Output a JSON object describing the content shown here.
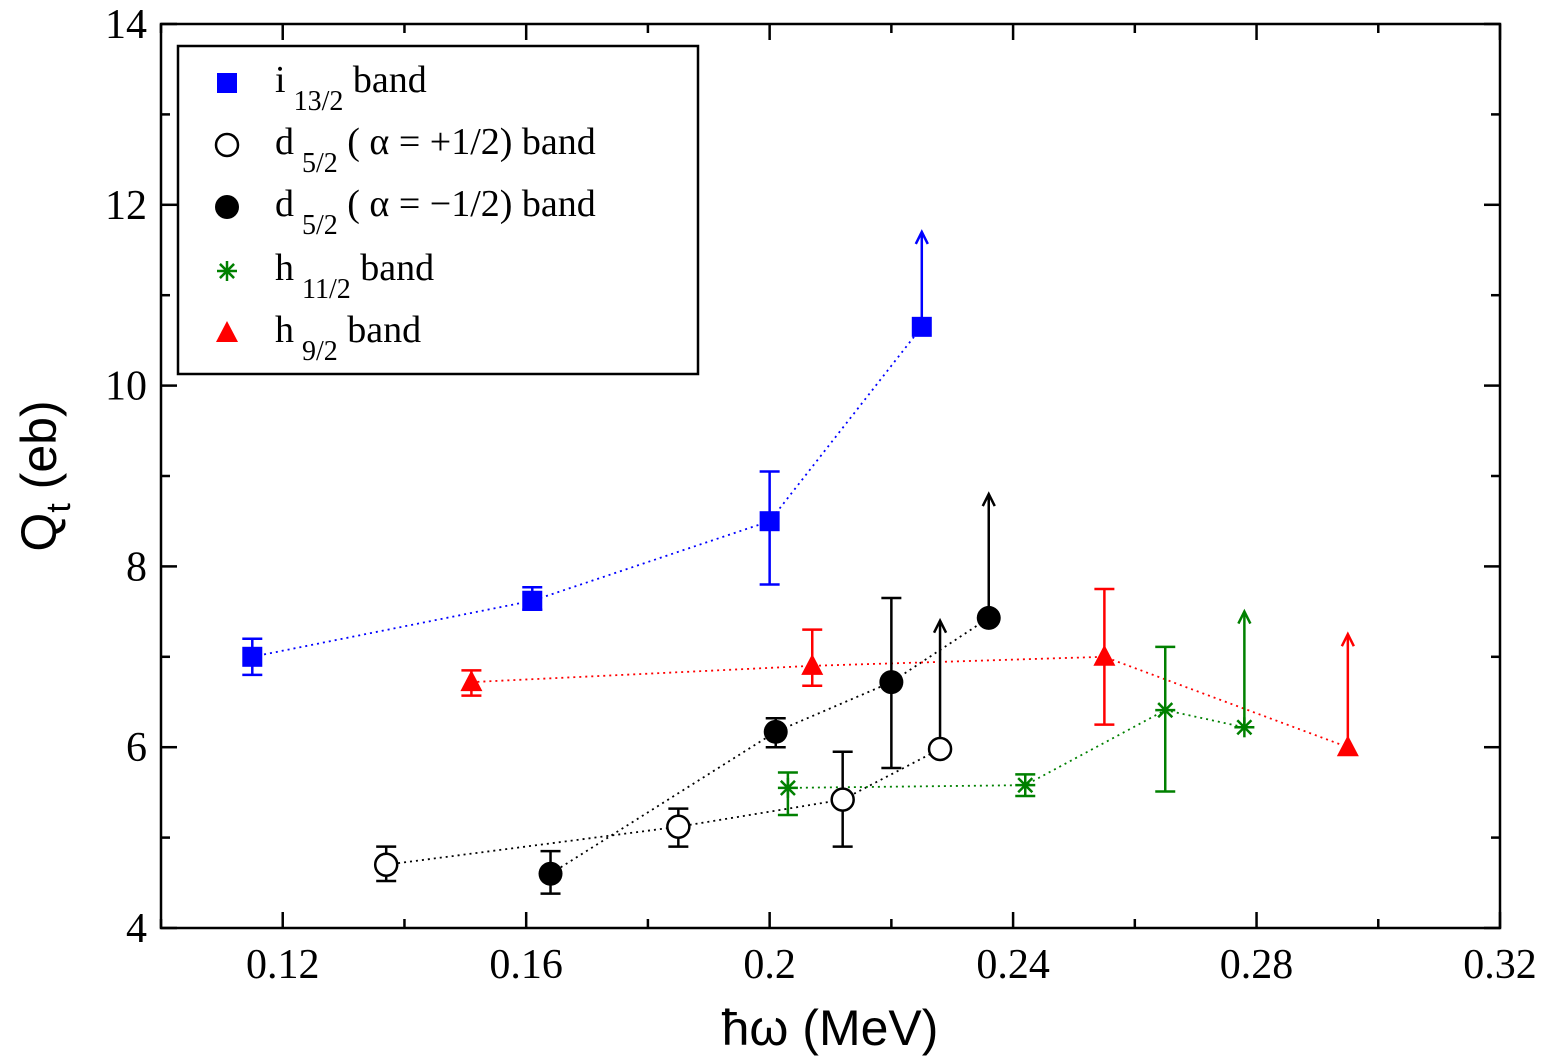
{
  "chart_data": {
    "type": "scatter",
    "xlabel": "ħω (MeV)",
    "ylabel_main": "Q",
    "ylabel_sub": "t",
    "ylabel_unit": " (eb)",
    "xlim": [
      0.1,
      0.32
    ],
    "ylim": [
      4,
      14
    ],
    "x_ticks": [
      0.12,
      0.16,
      0.2,
      0.24,
      0.28,
      0.32
    ],
    "x_tick_labels": [
      "0.12",
      "0.16",
      "0.2",
      "0.24",
      "0.28",
      "0.32"
    ],
    "y_ticks": [
      4,
      6,
      8,
      10,
      12,
      14
    ],
    "y_tick_labels": [
      "4",
      "6",
      "8",
      "10",
      "12",
      "14"
    ],
    "grid": false,
    "legend_position": "top-left",
    "series": [
      {
        "legend_main": "i",
        "legend_sub": "13/2",
        "legend_rest": "  band",
        "marker": "square",
        "color": "#0000ff",
        "points": [
          {
            "x": 0.115,
            "y": 7.0,
            "err_lo": 0.2,
            "err_hi": 0.2
          },
          {
            "x": 0.161,
            "y": 7.62,
            "err_lo": 0.1,
            "err_hi": 0.15
          },
          {
            "x": 0.2,
            "y": 8.5,
            "err_lo": 0.7,
            "err_hi": 0.55
          },
          {
            "x": 0.225,
            "y": 10.65,
            "lower_limit": true,
            "arrow_to": 11.7
          }
        ]
      },
      {
        "legend_main": "d",
        "legend_sub": "5/2",
        "legend_rest": " ( α = +1/2) band",
        "marker": "open-circle",
        "color": "#000000",
        "points": [
          {
            "x": 0.137,
            "y": 4.7,
            "err_lo": 0.18,
            "err_hi": 0.2
          },
          {
            "x": 0.185,
            "y": 5.12,
            "err_lo": 0.22,
            "err_hi": 0.2
          },
          {
            "x": 0.212,
            "y": 5.42,
            "err_lo": 0.52,
            "err_hi": 0.53
          },
          {
            "x": 0.228,
            "y": 5.98,
            "lower_limit": true,
            "arrow_to": 7.4
          }
        ]
      },
      {
        "legend_main": "d",
        "legend_sub": "5/2",
        "legend_rest": " ( α = −1/2) band",
        "marker": "filled-circle",
        "color": "#000000",
        "points": [
          {
            "x": 0.164,
            "y": 4.6,
            "err_lo": 0.22,
            "err_hi": 0.25
          },
          {
            "x": 0.201,
            "y": 6.17,
            "err_lo": 0.17,
            "err_hi": 0.15
          },
          {
            "x": 0.22,
            "y": 6.72,
            "err_lo": 0.95,
            "err_hi": 0.93
          },
          {
            "x": 0.236,
            "y": 7.43,
            "lower_limit": true,
            "arrow_to": 8.8
          }
        ]
      },
      {
        "legend_main": "h",
        "legend_sub": "11/2",
        "legend_rest": " band",
        "marker": "star",
        "color": "#008000",
        "points": [
          {
            "x": 0.203,
            "y": 5.55,
            "err_lo": 0.3,
            "err_hi": 0.17
          },
          {
            "x": 0.242,
            "y": 5.58,
            "err_lo": 0.12,
            "err_hi": 0.12
          },
          {
            "x": 0.265,
            "y": 6.41,
            "err_lo": 0.9,
            "err_hi": 0.7
          },
          {
            "x": 0.278,
            "y": 6.22,
            "lower_limit": true,
            "arrow_to": 7.5
          }
        ]
      },
      {
        "legend_main": "h",
        "legend_sub": "9/2",
        "legend_rest": " band",
        "marker": "triangle",
        "color": "#ff0000",
        "points": [
          {
            "x": 0.151,
            "y": 6.72,
            "err_lo": 0.15,
            "err_hi": 0.13
          },
          {
            "x": 0.207,
            "y": 6.9,
            "err_lo": 0.22,
            "err_hi": 0.4
          },
          {
            "x": 0.255,
            "y": 7.0,
            "err_lo": 0.75,
            "err_hi": 0.75
          },
          {
            "x": 0.295,
            "y": 6.0,
            "lower_limit": true,
            "arrow_to": 7.25
          }
        ]
      }
    ]
  }
}
